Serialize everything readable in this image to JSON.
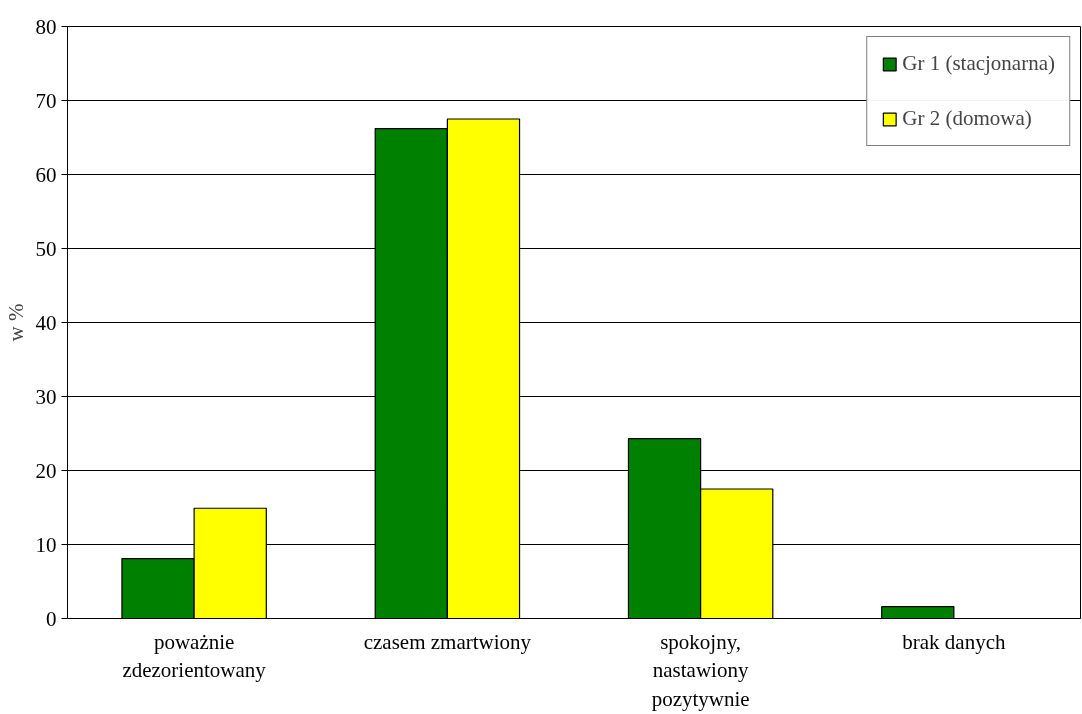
{
  "chart_data": {
    "type": "bar",
    "ylabel": "w %",
    "categories": [
      "poważnie zdezorientowany",
      "czasem zmartwiony",
      "spokojny, nastawiony pozytywnie",
      "brak danych"
    ],
    "series": [
      {
        "name": "Gr 1 (stacjonarna)",
        "color": "#008000",
        "values": [
          8.1,
          66.2,
          24.3,
          1.6
        ]
      },
      {
        "name": "Gr 2 (domowa)",
        "color": "#ffff00",
        "values": [
          14.9,
          67.5,
          17.5,
          null
        ]
      }
    ],
    "ylim": [
      0,
      80
    ],
    "yticks": [
      0,
      10,
      20,
      30,
      40,
      50,
      60,
      70,
      80
    ],
    "grid": "y",
    "legend": "top right"
  }
}
